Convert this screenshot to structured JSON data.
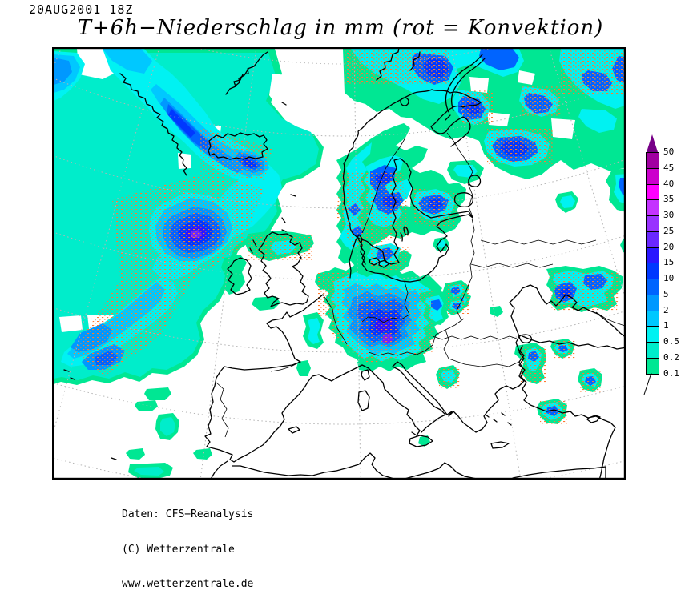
{
  "header": {
    "datetime": "20AUG2001 18Z",
    "title": "T+6h−Niederschlag in mm (rot = Konvektion)"
  },
  "footer": {
    "lines": [
      "Daten: CFS−Reanalysis",
      "(C) Wetterzentrale",
      "www.wetterzentrale.de"
    ]
  },
  "legend": {
    "values": [
      "50",
      "45",
      "40",
      "35",
      "30",
      "25",
      "20",
      "15",
      "10",
      "5",
      "2",
      "1",
      "0.5",
      "0.2",
      "0.1"
    ],
    "colors": [
      "#A100A1",
      "#CC00CC",
      "#FF00FF",
      "#C433FF",
      "#9932FF",
      "#6A28FF",
      "#2A16FF",
      "#0038FF",
      "#0064FF",
      "#0098FF",
      "#00C8FF",
      "#00F2F2",
      "#00EDCB",
      "#00E793"
    ],
    "arrow_color": "#770087",
    "unit": "mm"
  },
  "map": {
    "region": "Europe / North Atlantic",
    "palette": {
      "rain_0_1": "#00E793",
      "rain_0_2": "#00EDCB",
      "rain_0_5": "#00F2F2",
      "rain_1": "#00C8FF",
      "rain_2": "#0098FF",
      "rain_5": "#0064FF",
      "rain_10": "#0038FF",
      "rain_15": "#2A16FF",
      "rain_20": "#6A28FF",
      "rain_25": "#9932FF",
      "rain_50": "#770087",
      "speckle": "#CC33CC",
      "convection": "#FF7A2E",
      "coast": "#000000",
      "graticule": "#B4B4B4",
      "frame": "#000000",
      "background": "#FFFFFF"
    }
  }
}
